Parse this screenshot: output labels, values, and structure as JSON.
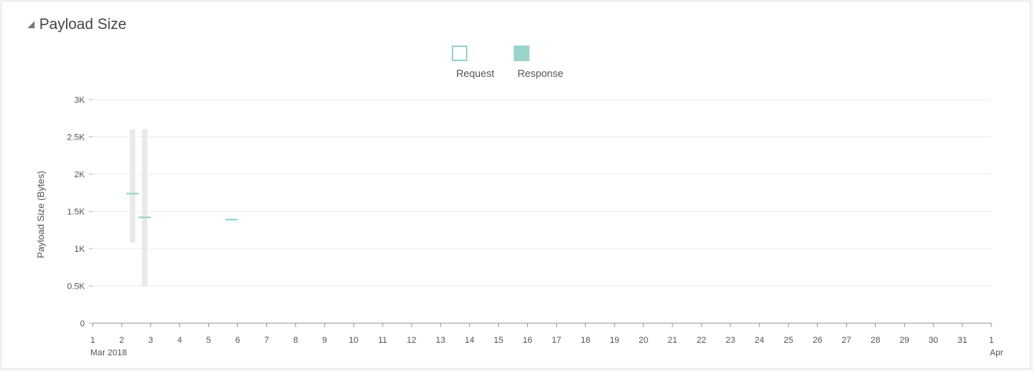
{
  "panel": {
    "title": "Payload Size",
    "collapse_icon": "collapse-triangle-icon"
  },
  "chart_data": {
    "type": "boxplot",
    "title": "",
    "xlabel": "",
    "ylabel": "Payload Size (Bytes)",
    "ylim": [
      0,
      3000
    ],
    "yticks": [
      {
        "value": 0,
        "label": "0"
      },
      {
        "value": 500,
        "label": "0.5K"
      },
      {
        "value": 1000,
        "label": "1K"
      },
      {
        "value": 1500,
        "label": "1.5K"
      },
      {
        "value": 2000,
        "label": "2K"
      },
      {
        "value": 2500,
        "label": "2.5K"
      },
      {
        "value": 3000,
        "label": "3K"
      }
    ],
    "xrange": [
      "2018-03-01",
      "2018-04-01"
    ],
    "xticks": [
      {
        "date": "2018-03-01",
        "label": "1",
        "sublabel": "Mar 2018"
      },
      {
        "date": "2018-03-02",
        "label": "2"
      },
      {
        "date": "2018-03-03",
        "label": "3"
      },
      {
        "date": "2018-03-04",
        "label": "4"
      },
      {
        "date": "2018-03-05",
        "label": "5"
      },
      {
        "date": "2018-03-06",
        "label": "6"
      },
      {
        "date": "2018-03-07",
        "label": "7"
      },
      {
        "date": "2018-03-08",
        "label": "8"
      },
      {
        "date": "2018-03-09",
        "label": "9"
      },
      {
        "date": "2018-03-10",
        "label": "10"
      },
      {
        "date": "2018-03-11",
        "label": "11"
      },
      {
        "date": "2018-03-12",
        "label": "12"
      },
      {
        "date": "2018-03-13",
        "label": "13"
      },
      {
        "date": "2018-03-14",
        "label": "14"
      },
      {
        "date": "2018-03-15",
        "label": "15"
      },
      {
        "date": "2018-03-16",
        "label": "16"
      },
      {
        "date": "2018-03-17",
        "label": "17"
      },
      {
        "date": "2018-03-18",
        "label": "18"
      },
      {
        "date": "2018-03-19",
        "label": "19"
      },
      {
        "date": "2018-03-20",
        "label": "20"
      },
      {
        "date": "2018-03-21",
        "label": "21"
      },
      {
        "date": "2018-03-22",
        "label": "22"
      },
      {
        "date": "2018-03-23",
        "label": "23"
      },
      {
        "date": "2018-03-24",
        "label": "24"
      },
      {
        "date": "2018-03-25",
        "label": "25"
      },
      {
        "date": "2018-03-26",
        "label": "26"
      },
      {
        "date": "2018-03-27",
        "label": "27"
      },
      {
        "date": "2018-03-28",
        "label": "28"
      },
      {
        "date": "2018-03-29",
        "label": "29"
      },
      {
        "date": "2018-03-30",
        "label": "30"
      },
      {
        "date": "2018-03-31",
        "label": "31"
      },
      {
        "date": "2018-04-01",
        "label": "1",
        "sublabel": "Apr"
      }
    ],
    "legend": {
      "position": "top-center",
      "items": [
        {
          "label": "Request",
          "style": "outline"
        },
        {
          "label": "Response",
          "style": "filled"
        }
      ]
    },
    "range_bars": [
      {
        "x": "2018-03-02 09:00",
        "low": 1080,
        "high": 2600
      },
      {
        "x": "2018-03-02 19:00",
        "low": 490,
        "high": 2600
      }
    ],
    "series": [
      {
        "name": "Response",
        "points": [
          {
            "x": "2018-03-02 09:00",
            "y": 1740
          },
          {
            "x": "2018-03-02 19:00",
            "y": 1420
          },
          {
            "x": "2018-03-05 19:00",
            "y": 1390
          }
        ]
      }
    ],
    "colors": {
      "series": "#99d3cc",
      "range": "#e9e9e9",
      "grid": "#ececec",
      "axis": "#999999",
      "text": "#555555"
    },
    "grid": true
  }
}
